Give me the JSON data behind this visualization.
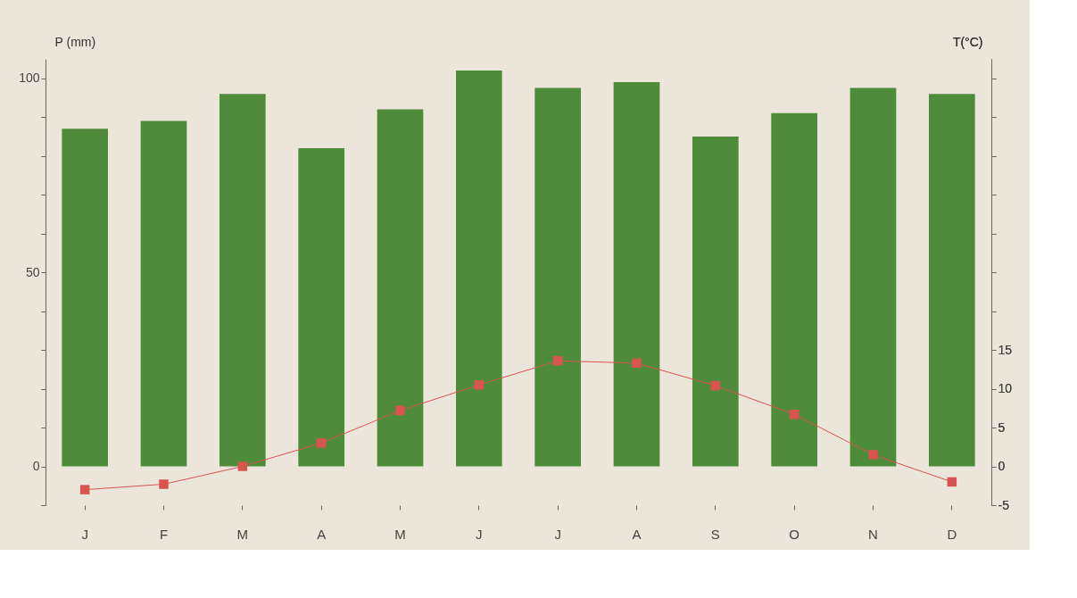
{
  "chart_data": {
    "type": "bar",
    "categories": [
      "J",
      "F",
      "M",
      "A",
      "M",
      "J",
      "J",
      "A",
      "S",
      "O",
      "N",
      "D"
    ],
    "ylabel": "P (mm)",
    "y2label": "T(°C)",
    "series": [
      {
        "color": "#4e8c3c",
        "values": [
          87,
          89,
          96,
          82,
          92,
          102,
          97.5,
          99,
          85,
          91,
          97.5,
          96
        ]
      },
      {
        "type": "line",
        "axis": "y2",
        "color": "#d9534f",
        "marker": "square",
        "line_style": "solid",
        "values": [
          -3,
          -2.3,
          0,
          3,
          7.2,
          10.5,
          13.6,
          13.3,
          10.4,
          6.7,
          1.5,
          -2
        ]
      }
    ],
    "ylim": [
      -10,
      105
    ],
    "yticks": [
      {
        "value": -10,
        "label": null
      },
      0,
      {
        "value": 10,
        "label": null
      },
      {
        "value": 20,
        "label": null
      },
      {
        "value": 30,
        "label": null
      },
      {
        "value": 40,
        "label": null
      },
      50,
      {
        "value": 60,
        "label": null
      },
      {
        "value": 70,
        "label": null
      },
      {
        "value": 80,
        "label": null
      },
      {
        "value": 90,
        "label": null
      },
      100
    ],
    "y2lim": [
      -5,
      52.5
    ],
    "y2ticks": [
      -5,
      0,
      5,
      10,
      15,
      {
        "value": 20,
        "label": null
      },
      {
        "value": 25,
        "label": null
      },
      {
        "value": 30,
        "label": null
      },
      {
        "value": 35,
        "label": null
      },
      {
        "value": 40,
        "label": null
      },
      {
        "value": 45,
        "label": null
      },
      {
        "value": 50,
        "label": null
      }
    ],
    "grid": false
  }
}
